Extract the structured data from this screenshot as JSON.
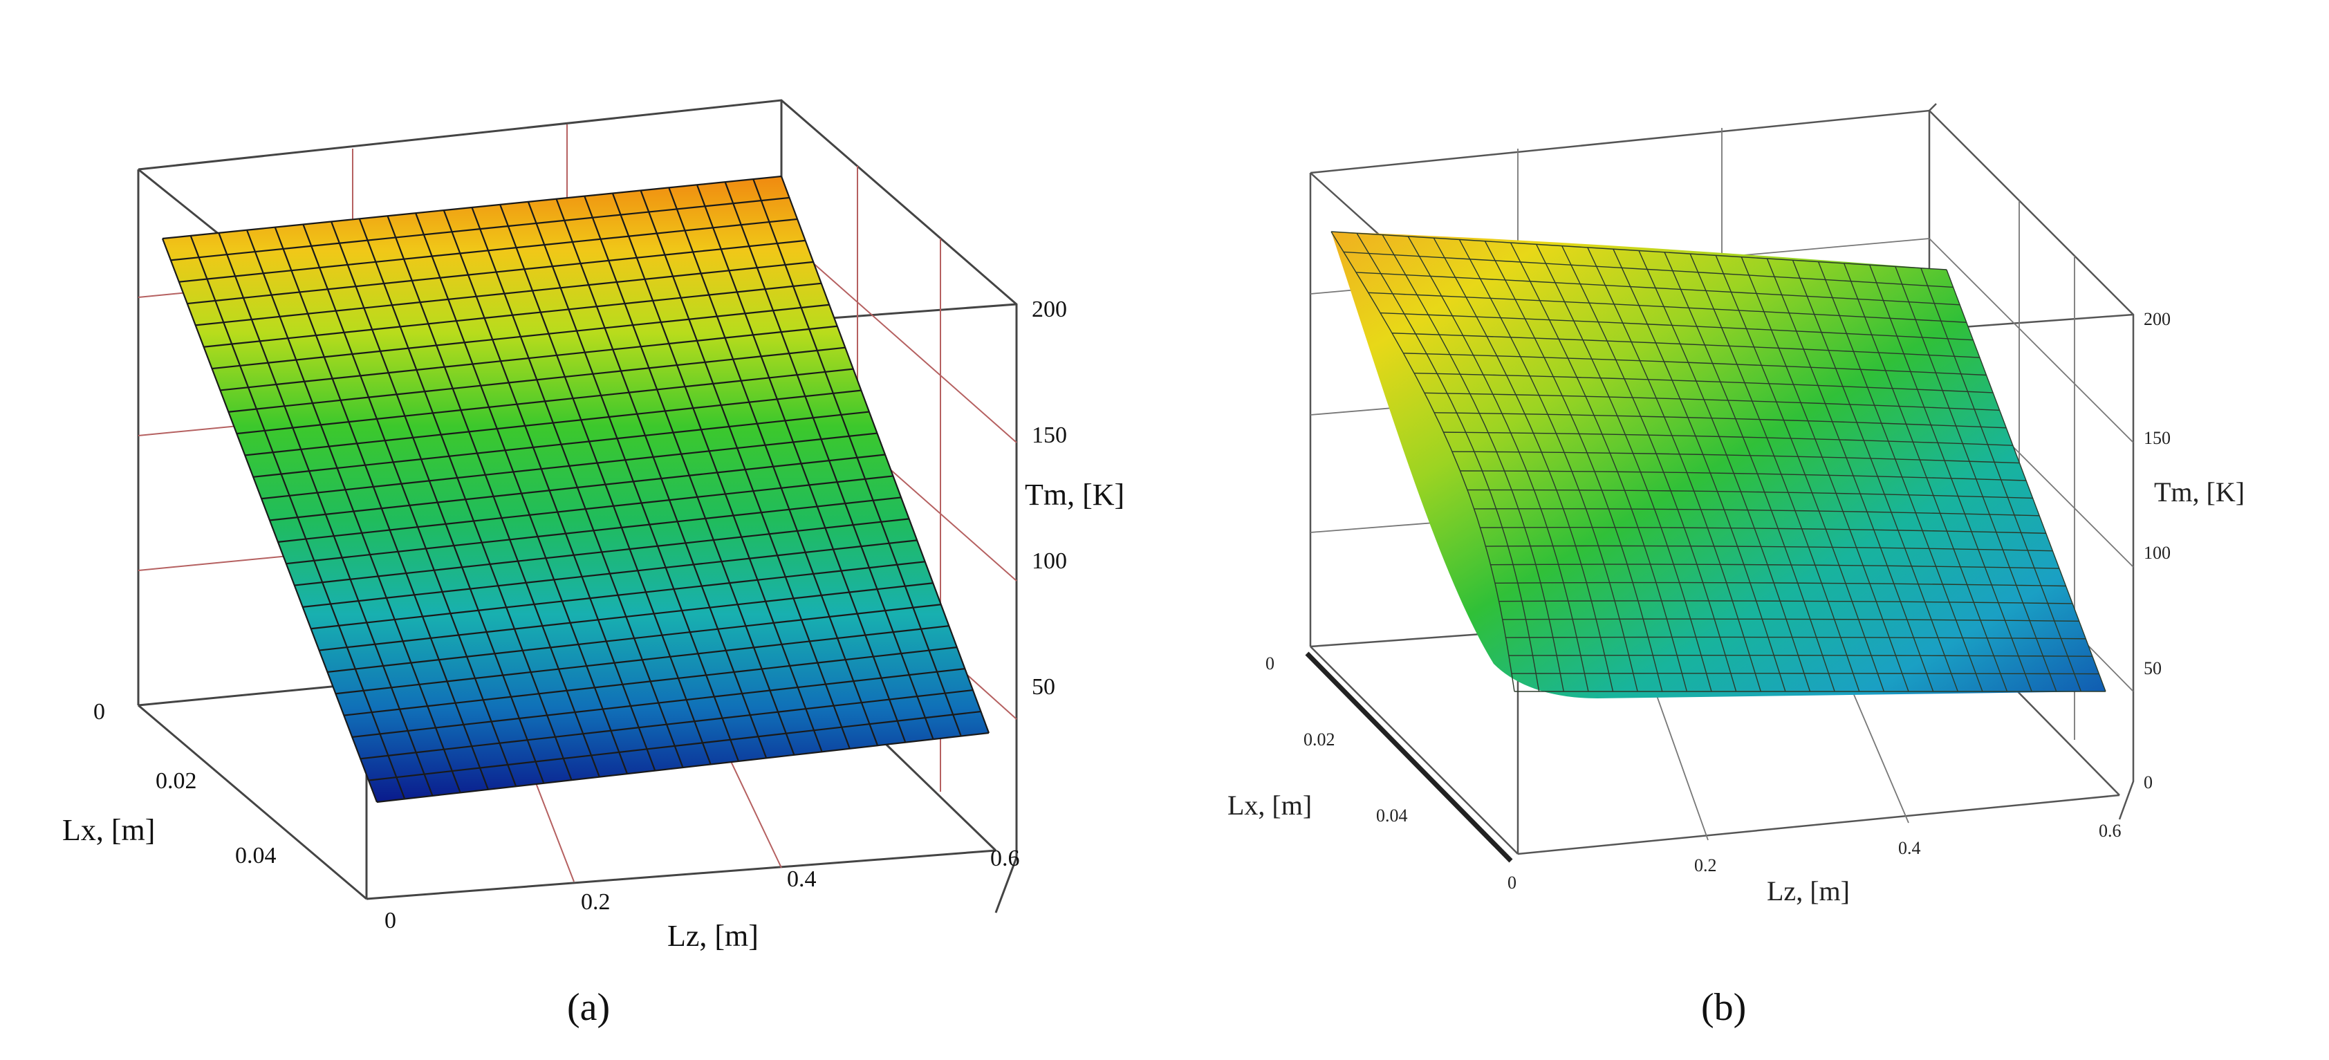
{
  "chart_data": [
    {
      "type": "surface3d",
      "panel_label": "(a)",
      "x_label": "Lz, [m]",
      "y_label": "Lx, [m]",
      "z_label": "Tm, [K]",
      "x_ticks": [
        "0",
        "0.2",
        "0.4",
        "0.6"
      ],
      "y_ticks": [
        "0",
        "0.02",
        "0.04"
      ],
      "z_ticks": [
        "50",
        "100",
        "150",
        "200"
      ],
      "x_range": [
        0,
        0.6
      ],
      "y_range": [
        0,
        0.05
      ],
      "z_range": [
        0,
        220
      ],
      "grid": true,
      "surface": {
        "description": "planar: Tm decreases linearly with Lx, constant along Lz",
        "Lx": [
          0,
          0.05
        ],
        "Tm_at_Lx": [
          215,
          0
        ]
      },
      "colormap": [
        "#0a1a8c",
        "#0f4fb0",
        "#1cb0c0",
        "#20c070",
        "#2ec82e",
        "#a0d820",
        "#f0d010",
        "#f08a10"
      ]
    },
    {
      "type": "surface3d",
      "panel_label": "(b)",
      "x_label": "Lz, [m]",
      "y_label": "Lx, [m]",
      "z_label": "Tm, [K]",
      "x_ticks": [
        "0",
        "0.2",
        "0.4",
        "0.6"
      ],
      "y_ticks": [
        "0",
        "0.02",
        "0.04"
      ],
      "z_ticks": [
        "0",
        "50",
        "100",
        "150",
        "200"
      ],
      "x_range": [
        0,
        0.6
      ],
      "y_range": [
        0,
        0.05
      ],
      "z_range": [
        0,
        220
      ],
      "grid": true,
      "surface": {
        "description": "curved: high at Lx=0 and Lz=0, decaying with Lz, levelling near 50 K",
        "corner_Tm": {
          "Lz0_Lx0": 190,
          "Lz06_Lx0": 170,
          "Lz0_Lx005": 55,
          "Lz06_Lx005": 50
        }
      },
      "colormap": [
        "#0f4fb0",
        "#1cb0c0",
        "#20c070",
        "#2ec82e",
        "#a0d820",
        "#f0d010",
        "#f0a020"
      ]
    }
  ]
}
